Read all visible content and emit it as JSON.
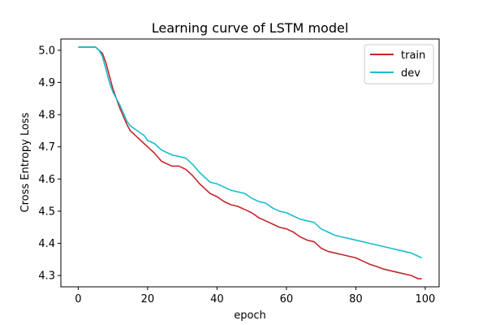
{
  "chart_data": {
    "type": "line",
    "title": "Learning curve of LSTM model",
    "xlabel": "epoch",
    "ylabel": "Cross Entropy Loss",
    "xlim": [
      -5,
      104
    ],
    "ylim": [
      4.265,
      5.035
    ],
    "xticks": [
      0,
      20,
      40,
      60,
      80,
      100
    ],
    "yticks": [
      4.3,
      4.4,
      4.5,
      4.6,
      4.7,
      4.8,
      4.9,
      5.0
    ],
    "ytick_labels": [
      "4.3",
      "4.4",
      "4.5",
      "4.6",
      "4.7",
      "4.8",
      "4.9",
      "5.0"
    ],
    "grid": false,
    "legend_position": "top-right",
    "x": [
      0,
      5,
      6,
      7,
      8,
      9,
      10,
      12,
      14,
      15,
      17,
      19,
      20,
      22,
      24,
      25,
      27,
      29,
      31,
      33,
      35,
      37,
      38,
      40,
      42,
      44,
      46,
      48,
      50,
      52,
      54,
      56,
      58,
      60,
      62,
      64,
      66,
      68,
      70,
      72,
      74,
      76,
      78,
      80,
      82,
      84,
      86,
      88,
      90,
      92,
      94,
      96,
      98,
      99
    ],
    "series": [
      {
        "name": "train",
        "color": "#c1272d",
        "values": [
          5.01,
          5.01,
          5.0,
          4.99,
          4.96,
          4.92,
          4.88,
          4.82,
          4.77,
          4.75,
          4.73,
          4.71,
          4.7,
          4.68,
          4.655,
          4.65,
          4.64,
          4.64,
          4.63,
          4.61,
          4.585,
          4.565,
          4.555,
          4.545,
          4.53,
          4.52,
          4.515,
          4.505,
          4.495,
          4.48,
          4.47,
          4.46,
          4.45,
          4.445,
          4.435,
          4.42,
          4.41,
          4.405,
          4.385,
          4.375,
          4.37,
          4.365,
          4.36,
          4.355,
          4.345,
          4.335,
          4.328,
          4.32,
          4.315,
          4.31,
          4.305,
          4.3,
          4.29,
          4.29
        ]
      },
      {
        "name": "dev",
        "color": "#17becf",
        "values": [
          5.01,
          5.01,
          5.0,
          4.98,
          4.94,
          4.9,
          4.87,
          4.83,
          4.78,
          4.765,
          4.75,
          4.735,
          4.72,
          4.71,
          4.69,
          4.685,
          4.675,
          4.67,
          4.665,
          4.645,
          4.62,
          4.6,
          4.59,
          4.585,
          4.575,
          4.565,
          4.56,
          4.555,
          4.54,
          4.53,
          4.525,
          4.51,
          4.5,
          4.495,
          4.485,
          4.475,
          4.47,
          4.465,
          4.445,
          4.435,
          4.425,
          4.42,
          4.415,
          4.41,
          4.405,
          4.4,
          4.395,
          4.39,
          4.385,
          4.38,
          4.375,
          4.37,
          4.36,
          4.355
        ]
      }
    ]
  }
}
